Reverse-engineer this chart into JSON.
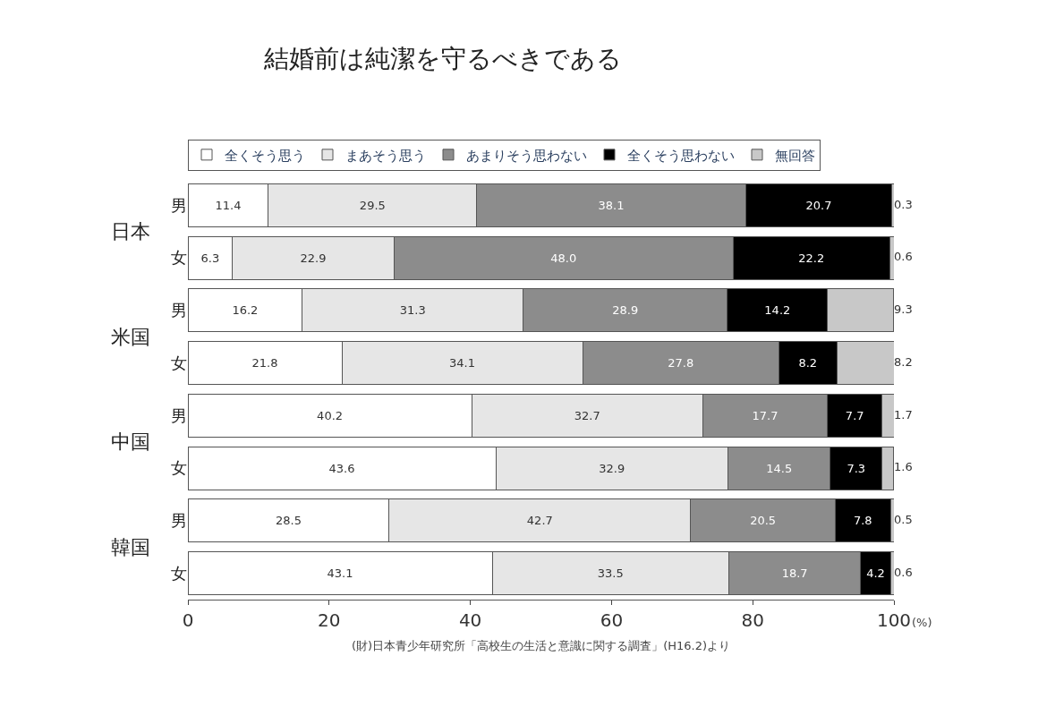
{
  "chart_data": {
    "type": "bar",
    "orientation": "horizontal",
    "stacked": true,
    "title": "結婚前は純潔を守るべきである",
    "categories": [
      "男",
      "女",
      "男",
      "女",
      "男",
      "女",
      "男",
      "女"
    ],
    "series": [
      {
        "name": "全くそう思う",
        "color": "#ffffff",
        "values": [
          11.4,
          6.3,
          16.2,
          21.8,
          40.2,
          43.6,
          28.5,
          43.1
        ],
        "value_labels": [
          "11.4",
          "6.3",
          "16.2",
          "21.8",
          "40.2",
          "43.6",
          "28.5",
          "43.1"
        ]
      },
      {
        "name": "まあそう思う",
        "color": "#e6e6e6",
        "values": [
          29.5,
          22.9,
          31.3,
          34.1,
          32.7,
          32.9,
          42.7,
          33.5
        ],
        "value_labels": [
          "29.5",
          "22.9",
          "31.3",
          "34.1",
          "32.7",
          "32.9",
          "42.7",
          "33.5"
        ]
      },
      {
        "name": "あまりそう思わない",
        "color": "#8c8c8c",
        "values": [
          38.1,
          48.0,
          28.9,
          27.8,
          17.7,
          14.5,
          20.5,
          18.7
        ],
        "value_labels": [
          "38.1",
          "48.0",
          "28.9",
          "27.8",
          "17.7",
          "14.5",
          "20.5",
          "18.7"
        ]
      },
      {
        "name": "全くそう思わない",
        "color": "#000000",
        "values": [
          20.7,
          22.2,
          14.2,
          8.2,
          7.7,
          7.3,
          7.8,
          4.2
        ],
        "value_labels": [
          "20.7",
          "22.2",
          "14.2",
          "8.2",
          "7.7",
          "7.3",
          "7.8",
          "4.2"
        ]
      },
      {
        "name": "無回答",
        "color": "#c8c8c8",
        "values": [
          0.3,
          0.6,
          9.3,
          8.2,
          1.7,
          1.6,
          0.5,
          0.6
        ],
        "value_labels": [
          "0.3",
          "0.6",
          "9.3",
          "8.2",
          "1.7",
          "1.6",
          "0.5",
          "0.6"
        ]
      }
    ],
    "annotations": [
      "日本",
      "米国",
      "中国",
      "韓国",
      "(財)日本青少年研究所「高校生の生活と意識に関する調査」(H16.2)より"
    ],
    "xlabel": "(%)",
    "xlim": [
      0,
      100
    ],
    "xticks": [
      0,
      20,
      40,
      60,
      80,
      100
    ],
    "legend": "top"
  }
}
